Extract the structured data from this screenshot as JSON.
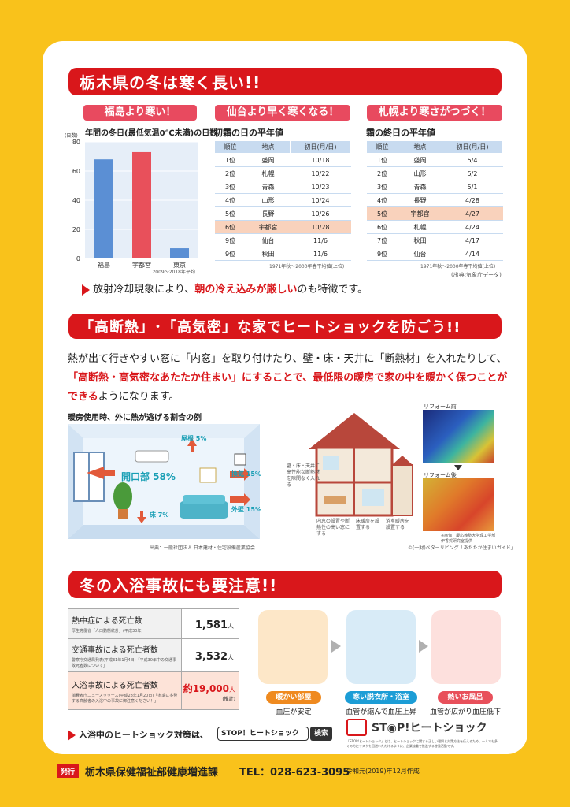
{
  "section1": {
    "title": "栃木県の冬は寒く長い!!",
    "col1": {
      "pill": "福島より寒い！",
      "subtitle": "年間の冬日(最低気温0℃未満)の日数",
      "unit": "(日数)",
      "source": "2009～2018年平均"
    },
    "col2": {
      "pill": "仙台より早く寒くなる！",
      "subtitle": "初霜の日の平年値",
      "headers": [
        "順位",
        "地点",
        "初日(月/日)"
      ],
      "rows": [
        [
          "1位",
          "盛岡",
          "10/18"
        ],
        [
          "2位",
          "札幌",
          "10/22"
        ],
        [
          "3位",
          "青森",
          "10/23"
        ],
        [
          "4位",
          "山形",
          "10/24"
        ],
        [
          "5位",
          "長野",
          "10/26"
        ],
        [
          "6位",
          "宇都宮",
          "10/28"
        ],
        [
          "9位",
          "仙台",
          "11/6"
        ],
        [
          "9位",
          "秋田",
          "11/6"
        ]
      ],
      "footnote": "1971年秋～2000年春平均値(上位)"
    },
    "col3": {
      "pill": "札幌より寒さがつづく！",
      "subtitle": "霜の終日の平年値",
      "headers": [
        "順位",
        "地点",
        "初日(月/日)"
      ],
      "rows": [
        [
          "1位",
          "盛岡",
          "5/4"
        ],
        [
          "2位",
          "山形",
          "5/2"
        ],
        [
          "3位",
          "青森",
          "5/1"
        ],
        [
          "4位",
          "長野",
          "4/28"
        ],
        [
          "5位",
          "宇都宮",
          "4/27"
        ],
        [
          "6位",
          "札幌",
          "4/24"
        ],
        [
          "7位",
          "秋田",
          "4/17"
        ],
        [
          "9位",
          "仙台",
          "4/14"
        ]
      ],
      "footnote": "1971年秋～2000年春平均値(上位)",
      "source": "(出典:気象庁データ)"
    },
    "note_pre": "放射冷却現象により、",
    "note_red": "朝の冷え込みが厳しい",
    "note_post": "のも特徴です。"
  },
  "chart_data": {
    "type": "bar",
    "categories": [
      "福島",
      "宇都宮",
      "東京"
    ],
    "values": [
      68,
      73,
      7
    ],
    "colors": [
      "#5b8fd4",
      "#e8505b",
      "#5b8fd4"
    ],
    "ylim": [
      0,
      80
    ],
    "yticks": [
      "0",
      "20",
      "40",
      "60",
      "80"
    ],
    "ylabel": "(日数)"
  },
  "section2": {
    "title": "「高断熱」･「高気密」な家でヒートショックを防ごう!!",
    "para_1": "熱が出て行きやすい窓に「内窓」を取り付けたり、壁・床・天井に「断熱材」を入れたりして、",
    "para_red": "「高断熱・高気密なあたたか住まい」にすることで、最低限の暖房で家の中を暖かく保つことができる",
    "para_2": "ようになります。",
    "room_caption": "暖房使用時、外に熱が逃げる割合の例",
    "labels": {
      "roof": "屋根 5%",
      "opening": "開口部 58%",
      "ventilation": "換気 15%",
      "wall": "外壁 15%",
      "floor": "床 7%"
    },
    "room_source": "出典：一般社団法人 日本建材・住宅設備産業協会",
    "house_notes": {
      "insulation": "壁・床・天井に高性能な断熱材を隙間なく入れる",
      "window": "内窓の設置や断熱性の高い窓にする",
      "floor_heat": "床暖房を設置する",
      "bath_heat": "浴室暖房を設置する"
    },
    "reform_before": "リフォーム前",
    "reform_after": "リフォーム後",
    "reform_credit": "※画像：慶応義塾大学理工学部伊香賀研究室提供",
    "house_source": "©(一財)ベターリビング「あたたか住まいガイド」"
  },
  "section3": {
    "title": "冬の入浴事故にも要注意!!",
    "stats": [
      {
        "label": "熱中症による死亡数",
        "sub": "厚生労働省「人口動態統計」(平成30年)",
        "value": "1,581",
        "unit": "人",
        "extra": ""
      },
      {
        "label": "交通事故による死亡者数",
        "sub": "警察庁交通局発表(平成31年1月4日)「平成30年中の交通事故死者数について」",
        "value": "3,532",
        "unit": "人",
        "extra": ""
      },
      {
        "label": "入浴事故による死亡者数",
        "sub": "消費者庁ニュースリリース(平成28年1月20日)「冬季に多発する高齢者の入浴中の事故に御注意ください！」",
        "value": "約19,000",
        "unit": "人",
        "extra": "(推計)"
      }
    ],
    "steps": [
      {
        "label": "暖かい部屋",
        "caption": "血圧が安定"
      },
      {
        "label": "寒い脱衣所・浴室",
        "caption": "血管が縮んで血圧上昇"
      },
      {
        "label": "熱いお風呂",
        "caption": "血管が広がり血圧低下"
      }
    ],
    "search_pre": "入浴中のヒートショック対策は、",
    "search_value": "STOP！ヒートショック",
    "search_button": "検索",
    "logo_text": "ST◉P!ヒートショック",
    "logo_note": "「STOP!ヒートショック」とは、ヒートショックに関する正しい理解と対策方法を伝えるため、一人でも多くの方にリスクを回避いただけるように、企業協働で推進する啓発活動です。"
  },
  "footer": {
    "badge": "発行",
    "publisher": "栃木県保健福祉部健康増進課",
    "tel": "TEL：028-623-3095",
    "date": "令和元(2019)年12月作成"
  }
}
